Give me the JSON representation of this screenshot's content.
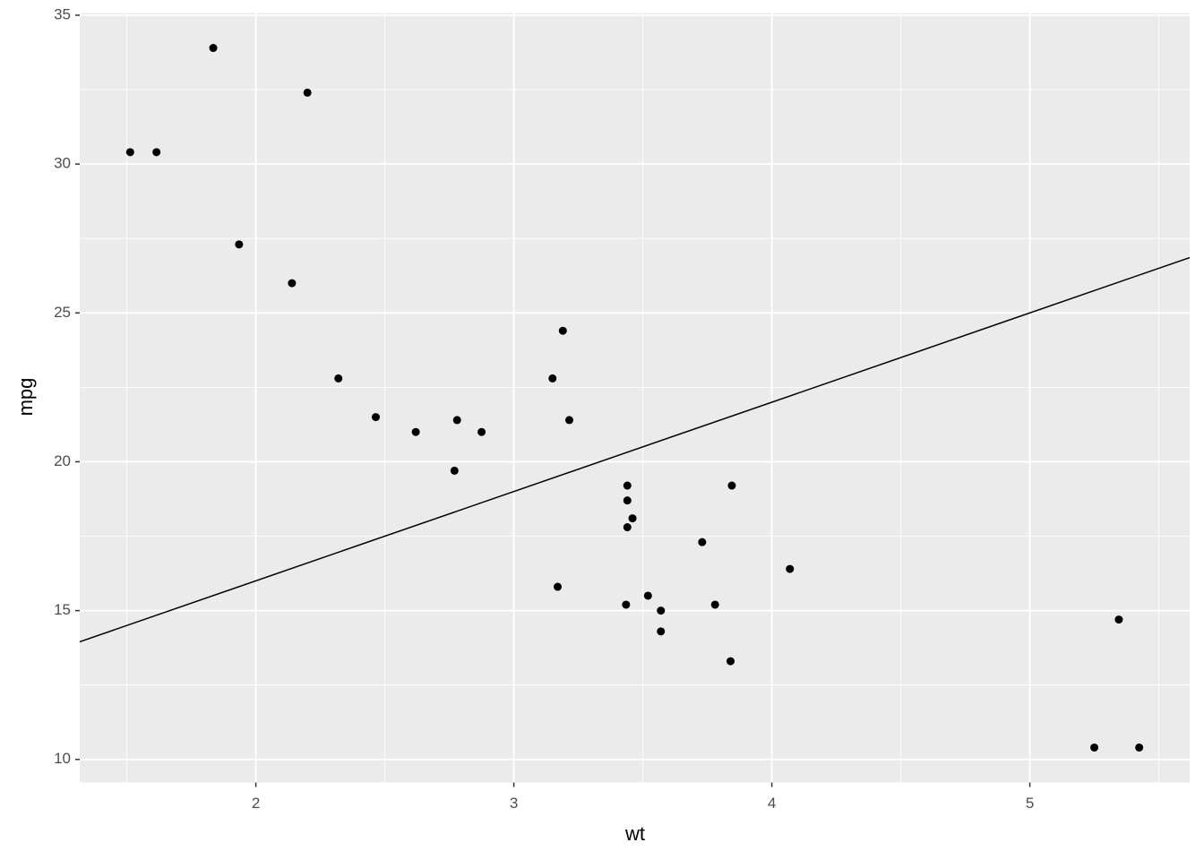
{
  "chart_data": {
    "type": "scatter",
    "x_label": "wt",
    "y_label": "mpg",
    "xlim": [
      1.31745,
      5.61955
    ],
    "ylim": [
      9.225,
      35.075
    ],
    "xticks": [
      2,
      3,
      4,
      5
    ],
    "yticks": [
      10,
      15,
      20,
      25,
      30,
      35
    ],
    "minor_xticks": [
      1.5,
      2.5,
      3.5,
      4.5,
      5.5
    ],
    "minor_yticks": [
      12.5,
      17.5,
      22.5,
      27.5,
      32.5
    ],
    "grid": true,
    "panel_color": "#ebebeb",
    "grid_color": "#ffffff",
    "series": [
      {
        "color": "#000000",
        "x": [
          2.62,
          2.875,
          2.32,
          3.215,
          3.44,
          3.46,
          3.57,
          3.19,
          3.15,
          3.44,
          3.44,
          4.07,
          3.73,
          3.78,
          5.25,
          5.424,
          5.345,
          2.2,
          1.615,
          1.835,
          2.465,
          3.52,
          3.435,
          3.84,
          3.845,
          1.935,
          2.14,
          1.513,
          3.17,
          2.77,
          3.57,
          2.78
        ],
        "values": [
          21.0,
          21.0,
          22.8,
          21.4,
          18.7,
          18.1,
          14.3,
          24.4,
          22.8,
          19.2,
          17.8,
          16.4,
          17.3,
          15.2,
          10.4,
          10.4,
          14.7,
          32.4,
          30.4,
          33.9,
          21.5,
          15.5,
          15.2,
          13.3,
          19.2,
          27.3,
          26.0,
          30.4,
          15.8,
          19.7,
          15.0,
          21.4
        ]
      }
    ],
    "abline": {
      "intercept": 10,
      "slope": 3,
      "color": "#000000"
    }
  }
}
